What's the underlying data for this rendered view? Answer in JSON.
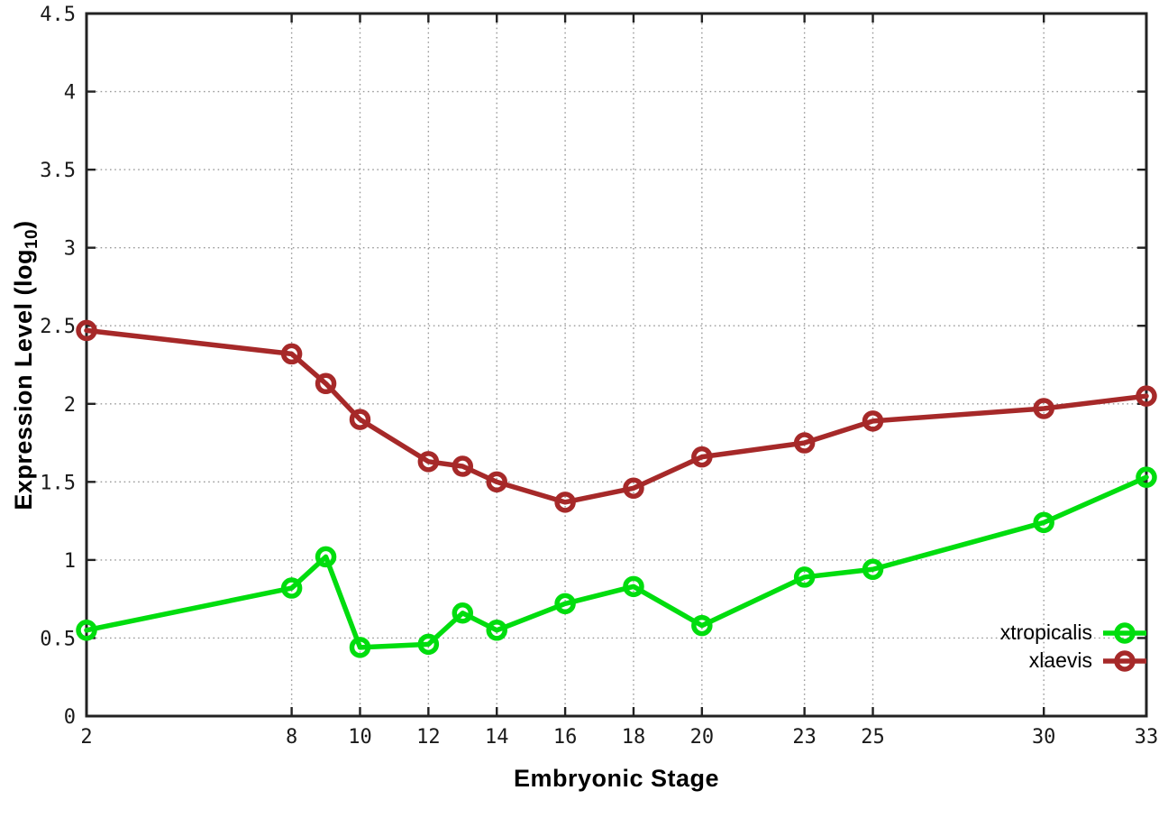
{
  "chart_data": {
    "type": "line",
    "title": "",
    "xlabel": "Embryonic Stage",
    "ylabel": "Expression Level (log10)",
    "ylabel_parts": {
      "main": "Expression Level (log",
      "sub": "10",
      "close": ")"
    },
    "x": [
      2,
      8,
      9,
      10,
      12,
      13,
      14,
      16,
      18,
      20,
      23,
      25,
      30,
      33
    ],
    "xticks": [
      2,
      8,
      10,
      12,
      14,
      16,
      18,
      20,
      23,
      25,
      30,
      33
    ],
    "xtick_labels": [
      "2",
      "8",
      "10",
      "12",
      "14",
      "16",
      "18",
      "20",
      "23",
      "25",
      "30",
      "33"
    ],
    "yticks": [
      0,
      0.5,
      1,
      1.5,
      2,
      2.5,
      3,
      3.5,
      4,
      4.5
    ],
    "ytick_labels": [
      "0",
      "0.5",
      "1",
      "1.5",
      "2",
      "2.5",
      "3",
      "3.5",
      "4",
      "4.5"
    ],
    "xlim": [
      2,
      33
    ],
    "ylim": [
      0,
      4.5
    ],
    "grid": true,
    "legend_position": "bottom-right",
    "series": [
      {
        "name": "xtropicalis",
        "color": "#00dd0e",
        "marker": "open-circle",
        "values": [
          0.55,
          0.82,
          1.02,
          0.44,
          0.46,
          0.66,
          0.55,
          0.72,
          0.83,
          0.58,
          0.89,
          0.94,
          1.24,
          1.53
        ]
      },
      {
        "name": "xlaevis",
        "color": "#a62929",
        "marker": "open-circle",
        "values": [
          2.47,
          2.32,
          2.13,
          1.9,
          1.63,
          1.6,
          1.5,
          1.37,
          1.46,
          1.66,
          1.75,
          1.89,
          1.97,
          2.05
        ]
      }
    ],
    "colors": {
      "axis": "#222222",
      "grid": "#999999",
      "tick_label": "#1a1a1a",
      "background": "#ffffff"
    }
  }
}
